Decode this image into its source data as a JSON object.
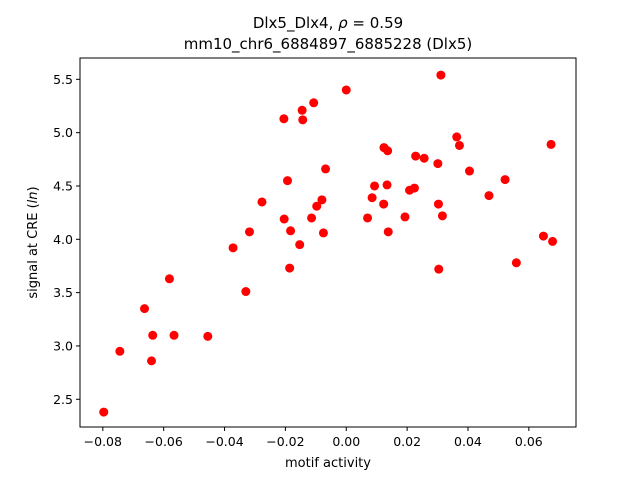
{
  "chart_data": {
    "type": "scatter",
    "title_line1_prefix": "Dlx5_Dlx4, ",
    "title_line1_rho": "ρ",
    "title_line1_suffix": " = 0.59",
    "title_line2": "mm10_chr6_6884897_6885228 (Dlx5)",
    "xlabel": "motif activity",
    "ylabel_prefix": "signal at CRE (",
    "ylabel_italic": "ln",
    "ylabel_suffix": ")",
    "xlim": [
      -0.0875,
      0.0755
    ],
    "ylim": [
      2.24,
      5.7
    ],
    "xticks": [
      -0.08,
      -0.06,
      -0.04,
      -0.02,
      0.0,
      0.02,
      0.04,
      0.06
    ],
    "xtick_labels": [
      "−0.08",
      "−0.06",
      "−0.04",
      "−0.02",
      "0.00",
      "0.02",
      "0.04",
      "0.06"
    ],
    "yticks": [
      2.5,
      3.0,
      3.5,
      4.0,
      4.5,
      5.0,
      5.5
    ],
    "ytick_labels": [
      "2.5",
      "3.0",
      "3.5",
      "4.0",
      "4.5",
      "5.0",
      "5.5"
    ],
    "marker_color": "#ff0000",
    "grid": false,
    "points": [
      {
        "x": -0.0797,
        "y": 2.38
      },
      {
        "x": -0.0744,
        "y": 2.95
      },
      {
        "x": -0.0663,
        "y": 3.35
      },
      {
        "x": -0.064,
        "y": 2.86
      },
      {
        "x": -0.0636,
        "y": 3.1
      },
      {
        "x": -0.0581,
        "y": 3.63
      },
      {
        "x": -0.0566,
        "y": 3.1
      },
      {
        "x": -0.0455,
        "y": 3.09
      },
      {
        "x": -0.0372,
        "y": 3.92
      },
      {
        "x": -0.033,
        "y": 3.51
      },
      {
        "x": -0.0318,
        "y": 4.07
      },
      {
        "x": -0.0277,
        "y": 4.35
      },
      {
        "x": -0.0205,
        "y": 5.13
      },
      {
        "x": -0.0204,
        "y": 4.19
      },
      {
        "x": -0.0193,
        "y": 4.55
      },
      {
        "x": -0.0186,
        "y": 3.73
      },
      {
        "x": -0.0183,
        "y": 4.08
      },
      {
        "x": -0.0153,
        "y": 3.95
      },
      {
        "x": -0.0145,
        "y": 5.21
      },
      {
        "x": -0.0143,
        "y": 5.12
      },
      {
        "x": -0.0114,
        "y": 4.2
      },
      {
        "x": -0.0107,
        "y": 5.28
      },
      {
        "x": -0.0097,
        "y": 4.31
      },
      {
        "x": -0.008,
        "y": 4.37
      },
      {
        "x": -0.0075,
        "y": 4.06
      },
      {
        "x": -0.0068,
        "y": 4.66
      },
      {
        "x": 0.0,
        "y": 5.4
      },
      {
        "x": 0.007,
        "y": 4.2
      },
      {
        "x": 0.0085,
        "y": 4.39
      },
      {
        "x": 0.0093,
        "y": 4.5
      },
      {
        "x": 0.0123,
        "y": 4.33
      },
      {
        "x": 0.0124,
        "y": 4.86
      },
      {
        "x": 0.0134,
        "y": 4.51
      },
      {
        "x": 0.0136,
        "y": 4.83
      },
      {
        "x": 0.0138,
        "y": 4.07
      },
      {
        "x": 0.0193,
        "y": 4.21
      },
      {
        "x": 0.0208,
        "y": 4.46
      },
      {
        "x": 0.0224,
        "y": 4.48
      },
      {
        "x": 0.0228,
        "y": 4.78
      },
      {
        "x": 0.0256,
        "y": 4.76
      },
      {
        "x": 0.0301,
        "y": 4.71
      },
      {
        "x": 0.0303,
        "y": 4.33
      },
      {
        "x": 0.0304,
        "y": 3.72
      },
      {
        "x": 0.0311,
        "y": 5.54
      },
      {
        "x": 0.0316,
        "y": 4.22
      },
      {
        "x": 0.0363,
        "y": 4.96
      },
      {
        "x": 0.0372,
        "y": 4.88
      },
      {
        "x": 0.0405,
        "y": 4.64
      },
      {
        "x": 0.0469,
        "y": 4.41
      },
      {
        "x": 0.0522,
        "y": 4.56
      },
      {
        "x": 0.0559,
        "y": 3.78
      },
      {
        "x": 0.0648,
        "y": 4.03
      },
      {
        "x": 0.0673,
        "y": 4.89
      },
      {
        "x": 0.0678,
        "y": 3.98
      }
    ]
  }
}
